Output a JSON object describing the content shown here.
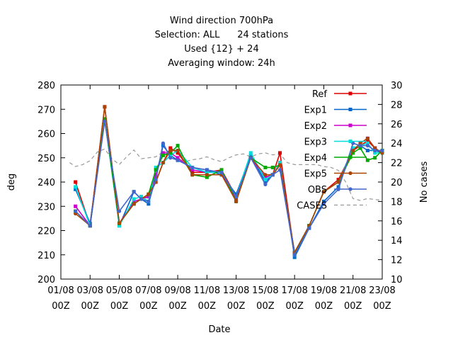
{
  "chart_data": {
    "type": "line",
    "title_lines": [
      "Wind direction 700hPa",
      "Selection: ALL      24 stations",
      "Used {12} + 24",
      "Averaging window: 24h"
    ],
    "xlabel": "Date",
    "ylabel": "deg",
    "y2label": "No cases",
    "ylim": [
      200,
      280
    ],
    "y2lim": [
      10,
      30
    ],
    "xlim": [
      0,
      22
    ],
    "yticks": [
      200,
      210,
      220,
      230,
      240,
      250,
      260,
      270,
      280
    ],
    "y2ticks": [
      10,
      12,
      14,
      16,
      18,
      20,
      22,
      24,
      26,
      28,
      30
    ],
    "xticks": [
      {
        "x": 0,
        "l1": "01/08",
        "l2": "00Z"
      },
      {
        "x": 2,
        "l1": "03/08",
        "l2": "00Z"
      },
      {
        "x": 4,
        "l1": "05/08",
        "l2": "00Z"
      },
      {
        "x": 6,
        "l1": "07/08",
        "l2": "00Z"
      },
      {
        "x": 8,
        "l1": "09/08",
        "l2": "00Z"
      },
      {
        "x": 10,
        "l1": "11/08",
        "l2": "00Z"
      },
      {
        "x": 12,
        "l1": "13/08",
        "l2": "00Z"
      },
      {
        "x": 14,
        "l1": "15/08",
        "l2": "00Z"
      },
      {
        "x": 16,
        "l1": "17/08",
        "l2": "00Z"
      },
      {
        "x": 18,
        "l1": "19/08",
        "l2": "00Z"
      },
      {
        "x": 20,
        "l1": "21/08",
        "l2": "00Z"
      },
      {
        "x": 22,
        "l1": "23/08",
        "l2": "00Z"
      }
    ],
    "legend_position": "top-right",
    "series": [
      {
        "name": "Ref",
        "color": "#dd0000",
        "marker": "square",
        "x": [
          1,
          2,
          3,
          4,
          5,
          5.5,
          6,
          6.5,
          7,
          7.5,
          8,
          9,
          10,
          11,
          12,
          13,
          14,
          14.5,
          15,
          16,
          17,
          18,
          19,
          20,
          20.5,
          21,
          21.5,
          22
        ],
        "y": [
          240,
          222,
          271,
          223,
          231,
          233,
          234,
          240,
          248,
          254,
          252,
          244,
          244,
          245,
          234,
          250,
          242,
          243,
          252,
          210,
          222,
          236,
          241,
          253,
          255,
          257,
          254,
          252
        ]
      },
      {
        "name": "Exp1",
        "color": "#0066cc",
        "marker": "square",
        "x": [
          1,
          2,
          3,
          4,
          5,
          5.5,
          6,
          6.5,
          7,
          7.5,
          8,
          9,
          10,
          11,
          12,
          13,
          14,
          14.5,
          15,
          16,
          17,
          18,
          19,
          20,
          20.5,
          21,
          21.5,
          22
        ],
        "y": [
          237,
          223,
          266,
          222,
          236,
          233,
          231,
          242,
          255,
          251,
          249,
          246,
          245,
          243,
          235,
          251,
          240,
          243,
          248,
          209,
          221,
          232,
          238,
          254,
          255,
          253,
          253,
          252
        ]
      },
      {
        "name": "Exp2",
        "color": "#cc00cc",
        "marker": "square",
        "x": [
          1,
          2,
          3,
          4,
          5,
          5.5,
          6,
          6.5,
          7,
          7.5,
          8,
          9,
          10,
          11,
          12,
          13,
          14,
          14.5,
          15,
          16,
          17,
          18,
          19,
          20,
          20.5,
          21,
          21.5,
          22
        ],
        "y": [
          230,
          222,
          266,
          223,
          232,
          233,
          234,
          243,
          252,
          252,
          250,
          245,
          244,
          244,
          233,
          250,
          242,
          243,
          247,
          211,
          222,
          236,
          240,
          253,
          256,
          258,
          254,
          252
        ]
      },
      {
        "name": "Exp3",
        "color": "#00dddd",
        "marker": "square",
        "x": [
          1,
          2,
          3,
          4,
          5,
          5.5,
          6,
          6.5,
          7,
          7.5,
          8,
          9,
          10,
          11,
          12,
          13,
          14,
          14.5,
          15,
          16,
          17,
          18,
          19,
          20,
          20.5,
          21,
          21.5,
          22
        ],
        "y": [
          238,
          222,
          266,
          222,
          233,
          234,
          232,
          246,
          248,
          251,
          253,
          246,
          244,
          244,
          234,
          252,
          241,
          243,
          248,
          210,
          222,
          236,
          240,
          254,
          255,
          256,
          252,
          252
        ]
      },
      {
        "name": "Exp4",
        "color": "#00aa00",
        "marker": "square",
        "x": [
          1,
          2,
          3,
          4,
          5,
          5.5,
          6,
          6.5,
          7,
          7.5,
          8,
          9,
          10,
          11,
          12,
          13,
          14,
          14.5,
          15,
          16,
          17,
          18,
          19,
          20,
          20.5,
          21,
          21.5,
          22
        ],
        "y": [
          228,
          222,
          266,
          223,
          231,
          233,
          235,
          245,
          251,
          252,
          255,
          243,
          242,
          245,
          232,
          250,
          246,
          246,
          247,
          211,
          222,
          236,
          240,
          252,
          254,
          249,
          250,
          253
        ]
      },
      {
        "name": "Exp5",
        "color": "#aa4400",
        "marker": "circle",
        "x": [
          1,
          2,
          3,
          4,
          5,
          5.5,
          6,
          6.5,
          7,
          7.5,
          8,
          9,
          10,
          11,
          12,
          13,
          14,
          14.5,
          15,
          16,
          17,
          18,
          19,
          20,
          20.5,
          21,
          21.5,
          22
        ],
        "y": [
          227,
          222,
          271,
          223,
          231,
          233,
          235,
          240,
          248,
          253,
          253,
          243,
          243,
          243,
          232,
          250,
          243,
          243,
          247,
          211,
          222,
          236,
          240,
          253,
          256,
          258,
          254,
          252
        ]
      },
      {
        "name": "OBS",
        "color": "#4466cc",
        "marker": "circle",
        "x": [
          1,
          2,
          3,
          4,
          5,
          5.5,
          6,
          6.5,
          7,
          7.5,
          8,
          9,
          10,
          11,
          12,
          13,
          14,
          14.5,
          15,
          16,
          17,
          18,
          19,
          20,
          20.5,
          21,
          21.5,
          22
        ],
        "y": [
          228,
          222,
          265,
          228,
          236,
          233,
          232,
          241,
          256,
          250,
          249,
          246,
          245,
          244,
          234,
          250,
          239,
          243,
          245,
          210,
          221,
          231,
          237,
          256,
          255,
          255,
          253,
          253
        ]
      }
    ],
    "cases": {
      "name": "CASES",
      "color": "#999999",
      "axis": "right",
      "x": [
        0.6,
        1,
        1.5,
        2,
        2.5,
        3,
        3.5,
        4,
        4.5,
        5,
        5.5,
        6,
        6.5,
        7,
        7.5,
        8,
        8.5,
        9,
        9.5,
        10,
        10.5,
        11,
        11.5,
        12,
        12.5,
        13,
        13.5,
        14,
        14.5,
        15,
        15.5,
        16,
        16.5,
        17,
        17.5,
        18,
        18.5,
        19,
        19.5,
        20,
        20.5,
        21,
        21.5,
        22
      ],
      "y": [
        22,
        21.6,
        21.8,
        22.2,
        23.1,
        23.4,
        22.4,
        21.8,
        22.6,
        23.3,
        22.4,
        22.5,
        22.6,
        23.1,
        23.2,
        22.4,
        22.1,
        22.3,
        22.4,
        22.6,
        22.3,
        22.1,
        22.5,
        22.8,
        22.9,
        22.6,
        22.9,
        23.0,
        22.8,
        22.9,
        22.0,
        21.8,
        21.8,
        21.8,
        21.8,
        21.6,
        21.5,
        21.2,
        20.0,
        18.3,
        18.1,
        18.3,
        18.2,
        18.1
      ]
    }
  }
}
